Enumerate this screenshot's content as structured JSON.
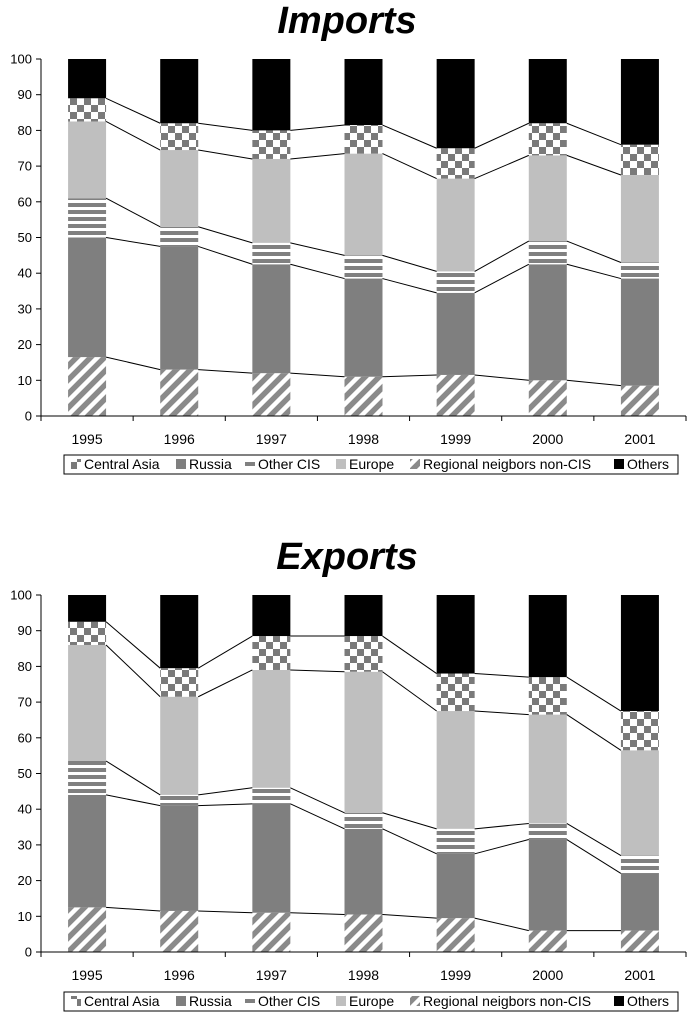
{
  "chart_data": [
    {
      "type": "bar",
      "stacked": true,
      "title": "Imports",
      "categories": [
        "1995",
        "1996",
        "1997",
        "1998",
        "1999",
        "2000",
        "2001"
      ],
      "ylim": [
        0,
        100
      ],
      "yticks": [
        0,
        10,
        20,
        30,
        40,
        50,
        60,
        70,
        80,
        90,
        100
      ],
      "grid": false,
      "legend_position": "bottom",
      "series": [
        {
          "name": "Regional neigbors non-CIS",
          "values": [
            16.5,
            13,
            12,
            11,
            11.5,
            10,
            8.5
          ]
        },
        {
          "name": "Russia",
          "values": [
            33.5,
            34.5,
            30.5,
            27.5,
            23,
            32.5,
            30
          ]
        },
        {
          "name": "Other CIS",
          "values": [
            11,
            5.5,
            6,
            6.5,
            6,
            6.5,
            4.5
          ]
        },
        {
          "name": "Europe",
          "values": [
            21.5,
            21.5,
            23.5,
            28.5,
            26,
            24,
            24.5
          ]
        },
        {
          "name": "Central Asia",
          "values": [
            6.5,
            7.5,
            8,
            8,
            8.5,
            9,
            8.5
          ]
        },
        {
          "name": "Others",
          "values": [
            11,
            18,
            20,
            18.5,
            25,
            18,
            24
          ]
        }
      ]
    },
    {
      "type": "bar",
      "stacked": true,
      "title": "Exports",
      "categories": [
        "1995",
        "1996",
        "1997",
        "1998",
        "1999",
        "2000",
        "2001"
      ],
      "ylim": [
        0,
        100
      ],
      "yticks": [
        0,
        10,
        20,
        30,
        40,
        50,
        60,
        70,
        80,
        90,
        100
      ],
      "grid": false,
      "legend_position": "bottom",
      "series": [
        {
          "name": "Regional neigbors non-CIS",
          "values": [
            12.5,
            11.5,
            11,
            10.5,
            9.5,
            6,
            6
          ]
        },
        {
          "name": "Russia",
          "values": [
            31.5,
            29.5,
            30.5,
            24,
            18,
            25.5,
            16
          ]
        },
        {
          "name": "Other CIS",
          "values": [
            9.5,
            3,
            4.5,
            4.5,
            7,
            4.5,
            5
          ]
        },
        {
          "name": "Europe",
          "values": [
            32.5,
            27.5,
            33,
            39.5,
            33,
            30.5,
            29.5
          ]
        },
        {
          "name": "Central Asia",
          "values": [
            6.5,
            8,
            9.5,
            10,
            10.5,
            10.5,
            11
          ]
        },
        {
          "name": "Others",
          "values": [
            7.5,
            20.5,
            11.5,
            11.5,
            22,
            23,
            32.5
          ]
        }
      ]
    }
  ],
  "legend": [
    {
      "key": "central_asia",
      "label": "Central Asia"
    },
    {
      "key": "russia",
      "label": "Russia"
    },
    {
      "key": "other_cis",
      "label": "Other CIS"
    },
    {
      "key": "europe",
      "label": "Europe"
    },
    {
      "key": "regional",
      "label": "Regional neigbors non-CIS"
    },
    {
      "key": "others",
      "label": "Others"
    }
  ],
  "colors": {
    "regional": "#8a8a8a",
    "russia": "#7f7f7f",
    "other_cis": "#808080",
    "europe": "#bfbfbf",
    "central_asia": "#7a7a7a",
    "others": "#000000",
    "connector": "#000000"
  }
}
